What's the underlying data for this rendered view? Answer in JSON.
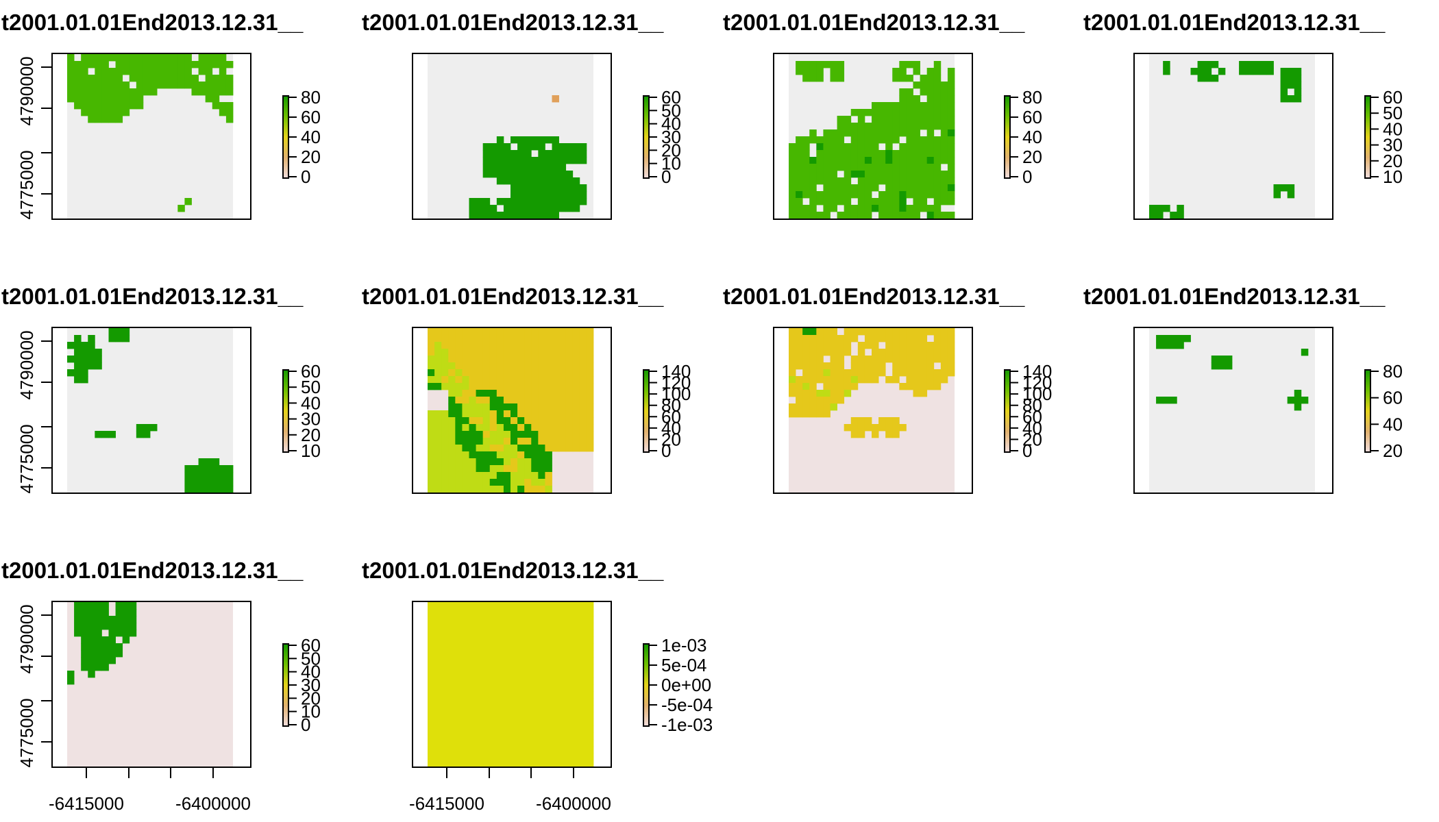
{
  "chart_data": {
    "type": "heatmap",
    "layout": "3x4 grid of raster panels (10 panels)",
    "shared_x_ticks": [
      "-6415000",
      "-6400000"
    ],
    "shared_y_ticks": [
      "4790000",
      "4775000"
    ],
    "panels": [
      {
        "title": "t2001.01.01End2013.12.31__",
        "legend_ticks": [
          "80",
          "60",
          "40",
          "20",
          "0"
        ],
        "dominant_classes": "green forest cover in upper portion, grey background",
        "colors": {
          "bg": "#eeeeee",
          "main": "#47b700",
          "accent": "#149a00"
        }
      },
      {
        "title": "t2001.01.01End2013.12.31__",
        "legend_ticks": [
          "60",
          "50",
          "40",
          "30",
          "20",
          "10",
          "0"
        ],
        "dominant_classes": "dark green patch in lower right, one orange pixel",
        "colors": {
          "bg": "#eeeeee",
          "main": "#149a00",
          "accent": "#e0a05a"
        }
      },
      {
        "title": "t2001.01.01End2013.12.31__",
        "legend_ticks": [
          "80",
          "60",
          "40",
          "20",
          "0"
        ],
        "dominant_classes": "green over most of area, grey in upper part",
        "colors": {
          "bg": "#eeeeee",
          "main": "#47b700",
          "accent": "#149a00"
        }
      },
      {
        "title": "t2001.01.01End2013.12.31__",
        "legend_ticks": [
          "60",
          "50",
          "40",
          "30",
          "20",
          "10"
        ],
        "dominant_classes": "scattered small dark green patches",
        "colors": {
          "bg": "#eeeeee",
          "main": "#149a00",
          "accent": "#149a00"
        }
      },
      {
        "title": "t2001.01.01End2013.12.31__",
        "legend_ticks": [
          "60",
          "50",
          "40",
          "30",
          "20",
          "10"
        ],
        "dominant_classes": "dark green patches top-left and bottom-right",
        "colors": {
          "bg": "#eeeeee",
          "main": "#149a00",
          "accent": "#149a00"
        }
      },
      {
        "title": "t2001.01.01End2013.12.31__",
        "legend_ticks": [
          "140",
          "120",
          "100",
          "80",
          "60",
          "40",
          "20",
          "0"
        ],
        "dominant_classes": "yellow, lime and dark green diagonal bands",
        "colors": {
          "bg": "#efe2e2",
          "main": "#e5c81b",
          "accent": "#149a00",
          "lime": "#bfdc15"
        }
      },
      {
        "title": "t2001.01.01End2013.12.31__",
        "legend_ticks": [
          "140",
          "120",
          "100",
          "80",
          "60",
          "40",
          "20",
          "0"
        ],
        "dominant_classes": "yellow in upper half, pinkish lower half",
        "colors": {
          "bg": "#efe2e2",
          "main": "#e5c81b",
          "accent": "#149a00",
          "lime": "#bfdc15"
        }
      },
      {
        "title": "t2001.01.01End2013.12.31__",
        "legend_ticks": [
          "80",
          "60",
          "40",
          "20"
        ],
        "dominant_classes": "few small dark green patches",
        "colors": {
          "bg": "#eeeeee",
          "main": "#149a00",
          "accent": "#47b700"
        }
      },
      {
        "title": "t2001.01.01End2013.12.31__",
        "legend_ticks": [
          "60",
          "50",
          "40",
          "30",
          "20",
          "10",
          "0"
        ],
        "dominant_classes": "dark green triangle in top-left, pinkish background",
        "colors": {
          "bg": "#efe2e2",
          "main": "#149a00",
          "accent": "#149a00"
        }
      },
      {
        "title": "t2001.01.01End2013.12.31__",
        "legend_ticks": [
          "1e-03",
          "5e-04",
          "0e+00",
          "-5e-04",
          "-1e-03"
        ],
        "dominant_classes": "uniform yellow raster",
        "colors": {
          "bg": "#dfe00a",
          "main": "#dfe00a",
          "accent": "#dfe00a"
        }
      }
    ],
    "legend_colors": [
      "#f2dede",
      "#e2b26f",
      "#e5d31b",
      "#6fc000",
      "#149a00"
    ]
  }
}
